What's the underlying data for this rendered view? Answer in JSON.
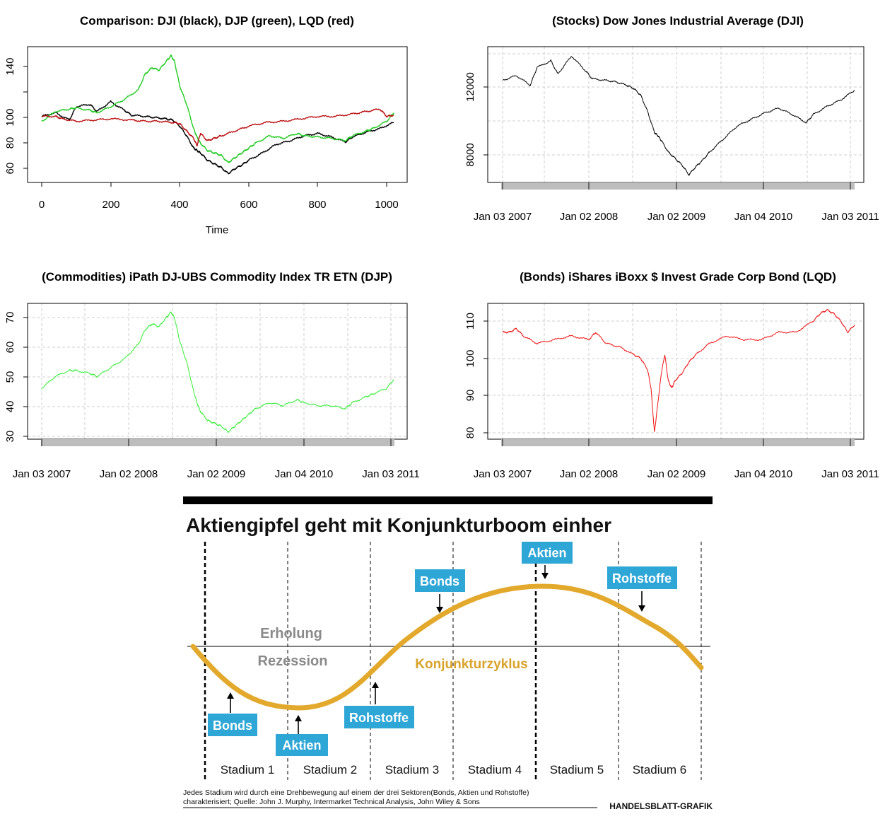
{
  "chart_data": [
    {
      "type": "line",
      "title": "Comparison: DJI (black), DJP (green), LQD (red)",
      "xlabel": "Time",
      "ylabel": "",
      "xlim": [
        0,
        1020
      ],
      "ylim": [
        48,
        155
      ],
      "x_ticks": [
        "0",
        "200",
        "400",
        "600",
        "800",
        "1000"
      ],
      "y_ticks": [
        "60",
        "80",
        "100",
        "140"
      ],
      "grid": false,
      "series": [
        {
          "name": "DJI",
          "color": "#000000",
          "x": [
            0,
            40,
            80,
            100,
            140,
            160,
            200,
            240,
            260,
            300,
            330,
            360,
            380,
            400,
            420,
            440,
            450,
            460,
            480,
            500,
            520,
            540,
            560,
            580,
            600,
            640,
            680,
            720,
            760,
            800,
            840,
            880,
            900,
            940,
            980,
            1020
          ],
          "y": [
            100,
            103,
            97,
            108,
            110,
            104,
            112,
            105,
            101,
            100,
            99,
            98,
            97,
            92,
            84,
            74,
            72,
            70,
            64,
            61,
            58,
            53,
            57,
            60,
            64,
            70,
            77,
            80,
            84,
            86,
            83,
            79,
            83,
            87,
            90,
            95
          ]
        },
        {
          "name": "DJP",
          "color": "#22cc22",
          "x": [
            0,
            40,
            80,
            100,
            140,
            160,
            200,
            240,
            280,
            300,
            320,
            340,
            360,
            375,
            385,
            400,
            420,
            440,
            450,
            460,
            480,
            500,
            520,
            540,
            560,
            580,
            600,
            620,
            660,
            700,
            740,
            760,
            800,
            840,
            880,
            900,
            940,
            960,
            1000,
            1020
          ],
          "y": [
            96,
            104,
            106,
            107,
            105,
            103,
            108,
            114,
            122,
            135,
            140,
            138,
            145,
            150,
            145,
            125,
            110,
            90,
            83,
            78,
            72,
            70,
            68,
            62,
            66,
            70,
            74,
            78,
            84,
            82,
            86,
            84,
            83,
            82,
            80,
            84,
            88,
            90,
            96,
            103
          ]
        },
        {
          "name": "LQD",
          "color": "#bb1111",
          "x": [
            0,
            40,
            60,
            100,
            150,
            200,
            260,
            300,
            340,
            380,
            400,
            420,
            440,
            450,
            460,
            480,
            500,
            520,
            560,
            600,
            650,
            700,
            750,
            800,
            850,
            900,
            940,
            980,
            1000,
            1020
          ],
          "y": [
            100,
            100,
            98,
            96,
            97,
            98,
            97,
            96,
            96,
            95,
            94,
            88,
            82,
            76,
            86,
            80,
            82,
            84,
            88,
            92,
            95,
            96,
            98,
            100,
            100,
            102,
            104,
            106,
            100,
            101
          ]
        }
      ]
    },
    {
      "type": "line",
      "title": "(Stocks) Dow Jones Industrial Average (DJI)",
      "xlabel": "",
      "ylabel": "",
      "xlim": [
        0,
        1020
      ],
      "ylim": [
        6300,
        14300
      ],
      "x_ticks": [
        "Jan 03 2007",
        "Jan 02 2008",
        "Jan 02 2009",
        "Jan 04 2010",
        "Jan 03 2011"
      ],
      "y_ticks": [
        "8000",
        "12000"
      ],
      "grid": true,
      "series": [
        {
          "name": "DJI",
          "color": "#000000",
          "x": [
            0,
            40,
            80,
            100,
            140,
            160,
            200,
            240,
            260,
            300,
            330,
            360,
            380,
            400,
            420,
            440,
            450,
            460,
            480,
            500,
            520,
            540,
            560,
            580,
            600,
            640,
            680,
            720,
            760,
            800,
            840,
            880,
            900,
            940,
            980,
            1020
          ],
          "y": [
            12400,
            12700,
            12100,
            13200,
            13600,
            12800,
            13900,
            13000,
            12500,
            12400,
            12300,
            12100,
            11900,
            11500,
            10500,
            9200,
            9000,
            8700,
            8000,
            7600,
            7200,
            6600,
            7100,
            7500,
            8000,
            8800,
            9600,
            10000,
            10400,
            10700,
            10300,
            9800,
            10300,
            10800,
            11200,
            11800
          ]
        }
      ]
    },
    {
      "type": "line",
      "title": "(Commodities) iPath DJ-UBS Commodity Index TR ETN (DJP)",
      "xlabel": "",
      "ylabel": "",
      "xlim": [
        0,
        1020
      ],
      "ylim": [
        29.5,
        74
      ],
      "x_ticks": [
        "Jan 03 2007",
        "Jan 02 2008",
        "Jan 02 2009",
        "Jan 04 2010",
        "Jan 03 2011"
      ],
      "y_ticks": [
        "30",
        "40",
        "50",
        "60",
        "70"
      ],
      "grid": true,
      "series": [
        {
          "name": "DJP",
          "color": "#33ee33",
          "x": [
            0,
            40,
            80,
            100,
            140,
            160,
            200,
            240,
            280,
            300,
            320,
            340,
            360,
            375,
            385,
            400,
            420,
            440,
            450,
            460,
            480,
            500,
            520,
            540,
            560,
            580,
            600,
            620,
            660,
            700,
            740,
            760,
            800,
            840,
            880,
            900,
            940,
            960,
            1000,
            1020
          ],
          "y": [
            46,
            50,
            52,
            52,
            51,
            50,
            53,
            56,
            61,
            66,
            68,
            67,
            70,
            72,
            70,
            62,
            55,
            45,
            41,
            38,
            35,
            34,
            33,
            31,
            33,
            35,
            37,
            39,
            41,
            40,
            42,
            41,
            40,
            40,
            39,
            41,
            43,
            44,
            46,
            49
          ]
        }
      ]
    },
    {
      "type": "line",
      "title": "(Bonds) iShares iBoxx $ Invest Grade Corp Bond (LQD)",
      "xlabel": "",
      "ylabel": "",
      "xlim": [
        0,
        1020
      ],
      "ylim": [
        79,
        114
      ],
      "x_ticks": [
        "Jan 03 2007",
        "Jan 02 2008",
        "Jan 02 2009",
        "Jan 04 2010",
        "Jan 03 2011"
      ],
      "y_ticks": [
        "80",
        "90",
        "100",
        "110"
      ],
      "grid": true,
      "series": [
        {
          "name": "LQD",
          "color": "#ee1111",
          "x": [
            0,
            20,
            40,
            60,
            100,
            150,
            200,
            250,
            270,
            300,
            340,
            380,
            400,
            420,
            430,
            440,
            450,
            460,
            470,
            480,
            490,
            500,
            520,
            540,
            560,
            600,
            650,
            700,
            750,
            800,
            850,
            900,
            920,
            940,
            960,
            980,
            1000,
            1020
          ],
          "y": [
            107,
            107,
            108,
            106,
            104,
            105,
            106,
            105,
            107,
            104,
            103,
            101,
            100,
            97,
            92,
            80,
            88,
            96,
            101,
            94,
            92,
            94,
            96,
            99,
            101,
            104,
            106,
            105,
            105,
            107,
            107,
            110,
            112,
            113,
            112,
            110,
            107,
            109
          ]
        }
      ]
    }
  ],
  "diagram": {
    "title": "Aktiengipfel geht mit Konjunkturboom einher",
    "upper_label": "Erholung",
    "lower_label": "Rezession",
    "curve_label": "Konjunkturzyklus",
    "stages": [
      "Stadium 1",
      "Stadium 2",
      "Stadium 3",
      "Stadium 4",
      "Stadium 5",
      "Stadium 6"
    ],
    "markers": [
      "Bonds",
      "Aktien",
      "Rohstoffe",
      "Bonds",
      "Aktien",
      "Rohstoffe"
    ],
    "footnote_line1": "Jedes Stadium wird durch eine Drehbewegung auf einem der drei Sektoren(Bonds, Aktien und Rohstoffe)",
    "footnote_line2": "charakterisiert; Quelle: John J. Murphy, Intermarket Technical Analysis, John Wiley & Sons",
    "credit": "HANDELSBLATT-GRAFIK",
    "colors": {
      "curve": "#e3a92c",
      "curve_label": "#d9a22a",
      "marker_bg": "#2ea6d6",
      "marker_text": "#ffffff",
      "gray_label": "#8a8a8a"
    }
  }
}
